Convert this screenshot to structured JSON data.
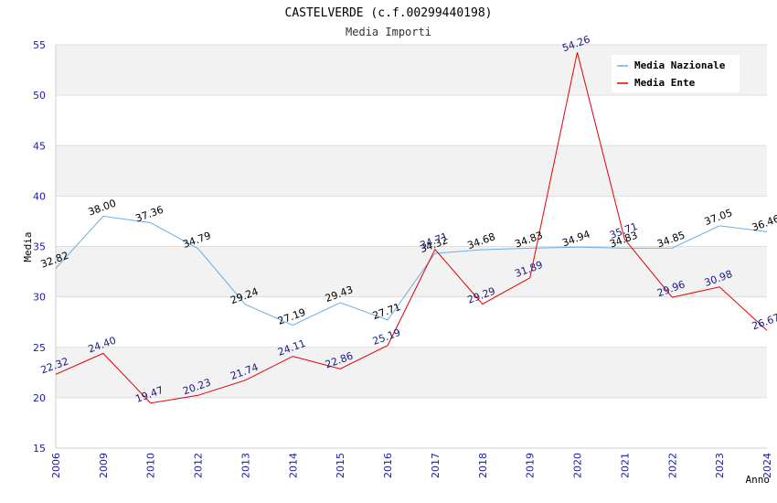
{
  "chart_data": {
    "type": "line",
    "title": "CASTELVERDE (c.f.00299440198)",
    "subtitle": "Media Importi",
    "xlabel": "Anno",
    "ylabel": "Media",
    "categories": [
      "2006",
      "2009",
      "2010",
      "2012",
      "2013",
      "2014",
      "2015",
      "2016",
      "2017",
      "2018",
      "2019",
      "2020",
      "2021",
      "2022",
      "2023",
      "2024"
    ],
    "ylim": [
      15,
      55
    ],
    "yticks": [
      15,
      20,
      25,
      30,
      35,
      40,
      45,
      50,
      55
    ],
    "grid": true,
    "legend_position": "top-right",
    "series": [
      {
        "name": "Media Nazionale",
        "color": "#6aaee6",
        "label_color": "#000000",
        "values": [
          32.82,
          38.0,
          37.36,
          34.79,
          29.24,
          27.19,
          29.43,
          27.71,
          34.32,
          34.68,
          34.83,
          34.94,
          34.83,
          34.85,
          37.05,
          36.46
        ],
        "labels": [
          "32.82",
          "38.00",
          "37.36",
          "34.79",
          "29.24",
          "27.19",
          "29.43",
          "27.71",
          "34.32",
          "34.68",
          "34.83",
          "34.94",
          "34.83",
          "34.85",
          "37.05",
          "36.46"
        ]
      },
      {
        "name": "Media Ente",
        "color": "#e00000",
        "label_color": "#1a1a80",
        "values": [
          22.32,
          24.4,
          19.47,
          20.23,
          21.74,
          24.11,
          22.86,
          25.19,
          34.71,
          29.29,
          31.89,
          54.26,
          35.71,
          29.96,
          30.98,
          26.67
        ],
        "labels": [
          "22.32",
          "24.40",
          "19.47",
          "20.23",
          "21.74",
          "24.11",
          "22.86",
          "25.19",
          "34.71",
          "29.29",
          "31.89",
          "54.26",
          "35.71",
          "29.96",
          "30.98",
          "26.67"
        ]
      }
    ]
  }
}
